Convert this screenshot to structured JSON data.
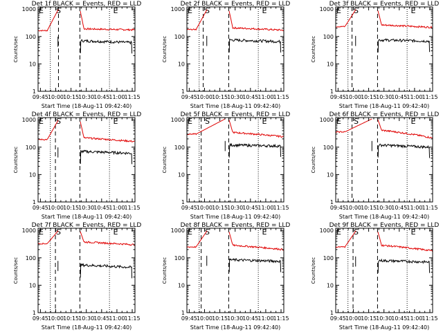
{
  "chart_data": [
    {
      "type": "line",
      "title": "Det 1f BLACK = Events, RED = LLD",
      "ylabel": "Counts/sec",
      "xlabel": "Start Time (18-Aug-11 09:42:40)",
      "xticks": [
        "09:45",
        "10:00",
        "10:15",
        "10:30",
        "10:45",
        "11:00",
        "11:15"
      ],
      "yticks": [
        "1",
        "10",
        "100",
        "1000"
      ],
      "xlim": [
        0,
        95
      ],
      "ylim": [
        1,
        1200
      ],
      "markers": [
        "E",
        "S",
        "E"
      ],
      "marker_t": [
        3,
        20,
        76
      ],
      "dashed_t": [
        20,
        41
      ],
      "dotted_t": [
        12,
        70
      ],
      "series": [
        {
          "name": "LLD",
          "color": "#e00000",
          "base": 165,
          "end": 175
        },
        {
          "name": "Events",
          "color": "#000000",
          "base": 70,
          "end": 60
        }
      ],
      "peak": 1000,
      "gap": [
        20,
        41
      ]
    },
    {
      "type": "line",
      "title": "Det 2f BLACK = Events, RED = LLD",
      "ylabel": "Counts/sec",
      "xlabel": "Start Time (18-Aug-11 09:42:40)",
      "xticks": [
        "09:45",
        "10:00",
        "10:15",
        "10:30",
        "10:45",
        "11:00",
        "11:15"
      ],
      "yticks": [
        "1",
        "10",
        "100",
        "1000"
      ],
      "xlim": [
        0,
        95
      ],
      "ylim": [
        1,
        1200
      ],
      "markers": [
        "E",
        "S",
        "E"
      ],
      "marker_t": [
        3,
        20,
        76
      ],
      "dashed_t": [
        16,
        41
      ],
      "dotted_t": [
        12,
        70
      ],
      "series": [
        {
          "name": "LLD",
          "color": "#e00000",
          "base": 180,
          "end": 170
        },
        {
          "name": "Events",
          "color": "#000000",
          "base": 75,
          "end": 65
        }
      ],
      "peak": 1000,
      "gap": [
        20,
        41
      ]
    },
    {
      "type": "line",
      "title": "Det 3f BLACK = Events, RED = LLD",
      "ylabel": "Counts/sec",
      "xlabel": "Start Time (18-Aug-11 09:42:40)",
      "xticks": [
        "09:45",
        "10:00",
        "10:15",
        "10:30",
        "10:45",
        "11:00",
        "11:15"
      ],
      "yticks": [
        "1",
        "10",
        "100",
        "1000"
      ],
      "xlim": [
        0,
        95
      ],
      "ylim": [
        1,
        1200
      ],
      "markers": [
        "E",
        "S",
        "E"
      ],
      "marker_t": [
        3,
        20,
        76
      ],
      "dashed_t": [
        16,
        41
      ],
      "dotted_t": [
        12,
        70
      ],
      "series": [
        {
          "name": "LLD",
          "color": "#e00000",
          "base": 230,
          "end": 215
        },
        {
          "name": "Events",
          "color": "#000000",
          "base": 75,
          "end": 68
        }
      ],
      "peak": 1000,
      "gap": [
        20,
        41
      ]
    },
    {
      "type": "line",
      "title": "Det 4f BLACK = Events, RED = LLD",
      "ylabel": "Counts/sec",
      "xlabel": "Start Time (18-Aug-11 09:42:40)",
      "xticks": [
        "09:45",
        "10:00",
        "10:15",
        "10:30",
        "10:45",
        "11:00",
        "11:15"
      ],
      "yticks": [
        "1",
        "10",
        "100",
        "1000"
      ],
      "xlim": [
        0,
        95
      ],
      "ylim": [
        1,
        1200
      ],
      "markers": [
        "E",
        "S",
        "E"
      ],
      "marker_t": [
        3,
        20,
        76
      ],
      "dashed_t": [
        17,
        41
      ],
      "dotted_t": [
        12,
        70
      ],
      "series": [
        {
          "name": "LLD",
          "color": "#e00000",
          "base": 190,
          "end": 160
        },
        {
          "name": "Events",
          "color": "#000000",
          "base": 70,
          "end": 60
        }
      ],
      "peak": 1000,
      "gap": [
        20,
        41
      ]
    },
    {
      "type": "line",
      "title": "Det 5f BLACK = Events, RED = LLD",
      "ylabel": "Counts/sec",
      "xlabel": "Start Time (18-Aug-11 09:42:40)",
      "xticks": [
        "09:45",
        "10:00",
        "10:15",
        "10:30",
        "10:45",
        "11:00",
        "11:15"
      ],
      "yticks": [
        "1",
        "10",
        "100",
        "1000"
      ],
      "xlim": [
        0,
        95
      ],
      "ylim": [
        1,
        1200
      ],
      "markers": [
        "E",
        "S",
        "E"
      ],
      "marker_t": [
        3,
        20,
        76
      ],
      "dashed_t": [
        14,
        41
      ],
      "dotted_t": [
        12,
        70
      ],
      "series": [
        {
          "name": "LLD",
          "color": "#e00000",
          "base": 300,
          "end": 240
        },
        {
          "name": "Events",
          "color": "#000000",
          "base": 120,
          "end": 110
        }
      ],
      "peak": 1100,
      "gap": [
        38,
        41
      ]
    },
    {
      "type": "line",
      "title": "Det 6f BLACK = Events, RED = LLD",
      "ylabel": "Counts/sec",
      "xlabel": "Start Time (18-Aug-11 09:42:40)",
      "xticks": [
        "09:45",
        "10:00",
        "10:15",
        "10:30",
        "10:45",
        "11:00",
        "11:15"
      ],
      "yticks": [
        "1",
        "10",
        "100",
        "1000"
      ],
      "xlim": [
        0,
        95
      ],
      "ylim": [
        1,
        1200
      ],
      "markers": [
        "E",
        "S",
        "E"
      ],
      "marker_t": [
        3,
        20,
        76
      ],
      "dashed_t": [
        16,
        41
      ],
      "dotted_t": [
        12,
        70
      ],
      "series": [
        {
          "name": "LLD",
          "color": "#e00000",
          "base": 360,
          "end": 215
        },
        {
          "name": "Events",
          "color": "#000000",
          "base": 120,
          "end": 100
        }
      ],
      "peak": 1100,
      "gap": [
        36,
        41
      ]
    },
    {
      "type": "line",
      "title": "Det 7f BLACK = Events, RED = LLD",
      "ylabel": "Counts/sec",
      "xlabel": "Start Time (18-Aug-11 09:42:40)",
      "xticks": [
        "09:45",
        "10:00",
        "10:15",
        "10:30",
        "10:45",
        "11:00",
        "11:15"
      ],
      "yticks": [
        "1",
        "10",
        "100",
        "1000"
      ],
      "xlim": [
        0,
        95
      ],
      "ylim": [
        1,
        1200
      ],
      "markers": [
        "E",
        "S",
        "E"
      ],
      "marker_t": [
        3,
        20,
        76
      ],
      "dashed_t": [
        17,
        41
      ],
      "dotted_t": [
        12,
        70
      ],
      "series": [
        {
          "name": "LLD",
          "color": "#e00000",
          "base": 330,
          "end": 300
        },
        {
          "name": "Events",
          "color": "#000000",
          "base": 55,
          "end": 45
        }
      ],
      "peak": 1000,
      "gap": [
        20,
        41
      ]
    },
    {
      "type": "line",
      "title": "Det 8f BLACK = Events, RED = LLD",
      "ylabel": "Counts/sec",
      "xlabel": "Start Time (18-Aug-11 09:42:40)",
      "xticks": [
        "09:45",
        "10:00",
        "10:15",
        "10:30",
        "10:45",
        "11:00",
        "11:15"
      ],
      "yticks": [
        "1",
        "10",
        "100",
        "1000"
      ],
      "xlim": [
        0,
        95
      ],
      "ylim": [
        1,
        1200
      ],
      "markers": [
        "E",
        "S",
        "E"
      ],
      "marker_t": [
        3,
        20,
        76
      ],
      "dashed_t": [
        14,
        41
      ],
      "dotted_t": [
        12,
        70
      ],
      "series": [
        {
          "name": "LLD",
          "color": "#e00000",
          "base": 250,
          "end": 200
        },
        {
          "name": "Events",
          "color": "#000000",
          "base": 85,
          "end": 75
        }
      ],
      "peak": 1000,
      "gap": [
        20,
        41
      ]
    },
    {
      "type": "line",
      "title": "Det 9f BLACK = Events, RED = LLD",
      "ylabel": "Counts/sec",
      "xlabel": "Start Time (18-Aug-11 09:42:40)",
      "xticks": [
        "09:45",
        "10:00",
        "10:15",
        "10:30",
        "10:45",
        "11:00",
        "11:15"
      ],
      "yticks": [
        "1",
        "10",
        "100",
        "1000"
      ],
      "xlim": [
        0,
        95
      ],
      "ylim": [
        1,
        1200
      ],
      "markers": [
        "E",
        "S",
        "E"
      ],
      "marker_t": [
        3,
        20,
        76
      ],
      "dashed_t": [
        17,
        41
      ],
      "dotted_t": [
        12,
        70
      ],
      "series": [
        {
          "name": "LLD",
          "color": "#e00000",
          "base": 250,
          "end": 180
        },
        {
          "name": "Events",
          "color": "#000000",
          "base": 80,
          "end": 70
        }
      ],
      "peak": 1000,
      "gap": [
        20,
        41
      ]
    }
  ]
}
